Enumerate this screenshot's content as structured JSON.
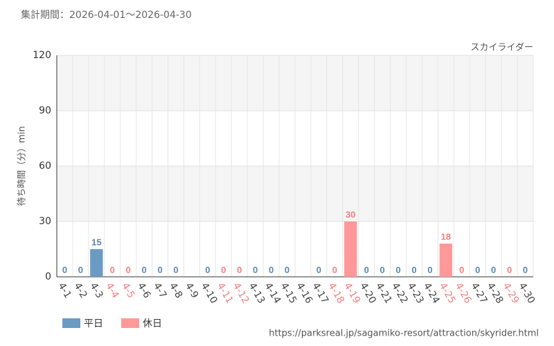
{
  "header": "集計期間：2026-04-01～2026-04-30",
  "footer": "https://parksreal.jp/sagamiko-resort/attraction/skyrider.html",
  "chart_data": {
    "type": "bar",
    "subtitle": "スカイライダー",
    "y_label": "待ち時間（分）min",
    "categories": [
      "4-1",
      "4-2",
      "4-3",
      "4-4",
      "4-5",
      "4-6",
      "4-7",
      "4-8",
      "4-9",
      "4-10",
      "4-11",
      "4-12",
      "4-13",
      "4-14",
      "4-15",
      "4-16",
      "4-17",
      "4-18",
      "4-19",
      "4-20",
      "4-21",
      "4-22",
      "4-23",
      "4-24",
      "4-25",
      "4-26",
      "4-27",
      "4-28",
      "4-29",
      "4-30"
    ],
    "series": [
      {
        "name": "平日",
        "color": "#6b9bc3",
        "label_color": "#5a87b0",
        "values": [
          0,
          0,
          15,
          null,
          null,
          0,
          0,
          0,
          null,
          0,
          null,
          null,
          0,
          0,
          0,
          null,
          0,
          null,
          null,
          0,
          0,
          0,
          0,
          0,
          null,
          null,
          0,
          0,
          null,
          0
        ]
      },
      {
        "name": "休日",
        "color": "#ff9999",
        "label_color": "#f08080",
        "values": [
          null,
          null,
          null,
          0,
          0,
          null,
          null,
          null,
          null,
          null,
          0,
          0,
          null,
          null,
          null,
          null,
          null,
          0,
          30,
          null,
          null,
          null,
          null,
          null,
          18,
          0,
          null,
          null,
          0,
          null
        ]
      }
    ],
    "ylim": [
      0,
      120
    ],
    "yticks": [
      0,
      30,
      60,
      90,
      120
    ],
    "grid": true,
    "legend": "bottom-left"
  }
}
